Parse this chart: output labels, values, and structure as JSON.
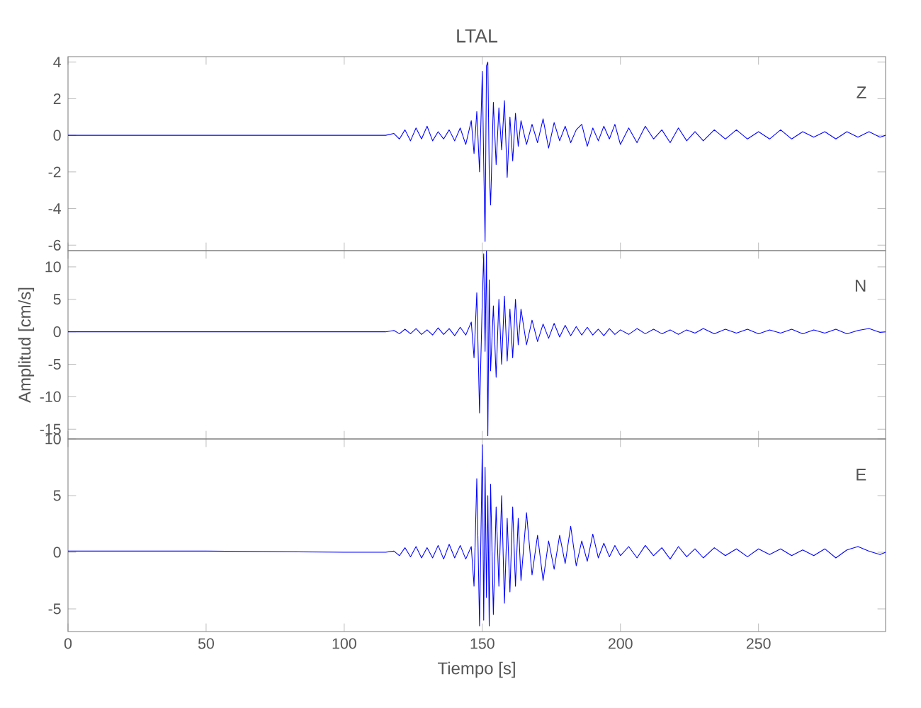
{
  "chart_data": [
    {
      "type": "line",
      "title": "LTAL",
      "annotations": [
        "Z"
      ],
      "color": "#0000ff",
      "tick_labels": "y",
      "xlim": [
        0,
        296
      ],
      "ylim": [
        -6.3,
        4.3
      ],
      "xticks": [
        0,
        50,
        100,
        150,
        200,
        250
      ],
      "yticks": [
        -6,
        -4,
        -2,
        0,
        2,
        4
      ],
      "x": [
        0,
        50,
        100,
        115,
        118,
        120,
        122,
        124,
        126,
        128,
        130,
        132,
        134,
        136,
        138,
        140,
        142,
        144,
        146,
        147,
        148,
        149,
        150,
        150.5,
        151,
        151.5,
        152,
        152.5,
        153,
        154,
        155,
        156,
        157,
        158,
        159,
        160,
        161,
        162,
        163,
        164,
        166,
        168,
        170,
        172,
        174,
        176,
        178,
        180,
        182,
        184,
        186,
        188,
        190,
        192,
        194,
        196,
        198,
        200,
        203,
        206,
        209,
        212,
        215,
        218,
        221,
        224,
        227,
        230,
        234,
        238,
        242,
        246,
        250,
        254,
        258,
        262,
        266,
        270,
        274,
        278,
        282,
        286,
        290,
        294,
        296
      ],
      "values": [
        0,
        0,
        0,
        0,
        0.1,
        -0.2,
        0.3,
        -0.3,
        0.4,
        -0.2,
        0.5,
        -0.3,
        0.2,
        -0.2,
        0.3,
        -0.3,
        0.4,
        -0.5,
        0.8,
        -1,
        1.3,
        -2,
        3.5,
        -1.5,
        -5.8,
        3.8,
        4,
        -2,
        -3.8,
        1.8,
        -1.6,
        1.5,
        -0.8,
        1.9,
        -2.3,
        1,
        -1.4,
        1.2,
        -0.6,
        0.8,
        -0.5,
        0.6,
        -0.4,
        0.9,
        -0.7,
        0.7,
        -0.3,
        0.5,
        -0.4,
        0.3,
        0.6,
        -0.6,
        0.4,
        -0.3,
        0.5,
        -0.2,
        0.6,
        -0.5,
        0.4,
        -0.4,
        0.5,
        -0.2,
        0.3,
        -0.4,
        0.4,
        -0.3,
        0.2,
        -0.3,
        0.3,
        -0.2,
        0.3,
        -0.2,
        0.2,
        -0.2,
        0.3,
        -0.2,
        0.2,
        -0.1,
        0.2,
        -0.2,
        0.2,
        -0.1,
        0.2,
        -0.1,
        0
      ]
    },
    {
      "type": "line",
      "ylabel": "Amplitud [cm/s]",
      "annotations": [
        "N"
      ],
      "color": "#0000ff",
      "tick_labels": "y",
      "xlim": [
        0,
        296
      ],
      "ylim": [
        -16.5,
        12.5
      ],
      "xticks": [
        0,
        50,
        100,
        150,
        200,
        250
      ],
      "yticks": [
        -15,
        -10,
        -5,
        0,
        5,
        10
      ],
      "x": [
        0,
        50,
        100,
        115,
        118,
        120,
        122,
        124,
        126,
        128,
        130,
        132,
        134,
        136,
        138,
        140,
        142,
        144,
        146,
        147,
        148,
        149,
        150,
        150.5,
        151,
        151.5,
        152,
        152.5,
        153,
        154,
        155,
        156,
        157,
        158,
        159,
        160,
        161,
        162,
        163,
        164,
        166,
        168,
        170,
        172,
        174,
        176,
        178,
        180,
        182,
        184,
        186,
        188,
        190,
        192,
        194,
        196,
        198,
        200,
        203,
        206,
        209,
        212,
        215,
        218,
        221,
        224,
        227,
        230,
        234,
        238,
        242,
        246,
        250,
        254,
        258,
        262,
        266,
        270,
        274,
        278,
        282,
        286,
        290,
        294,
        296
      ],
      "values": [
        0,
        0,
        0,
        0,
        0.2,
        -0.3,
        0.4,
        -0.3,
        0.5,
        -0.4,
        0.3,
        -0.5,
        0.6,
        -0.4,
        0.5,
        -0.6,
        0.7,
        -0.5,
        1.5,
        -4,
        6,
        -12.5,
        5,
        12,
        -3,
        12.5,
        -16,
        8,
        -6,
        4,
        -7,
        5,
        -5,
        5.5,
        -4.5,
        3.5,
        -4,
        5,
        -2,
        3.5,
        -2,
        1.8,
        -1.5,
        1.2,
        -1,
        1.3,
        -0.8,
        1,
        -0.6,
        0.8,
        -0.5,
        0.7,
        -0.5,
        0.4,
        -0.6,
        0.5,
        -0.4,
        0.3,
        -0.4,
        0.5,
        -0.3,
        0.4,
        -0.3,
        0.3,
        -0.4,
        0.3,
        -0.2,
        0.5,
        -0.3,
        0.4,
        -0.2,
        0.4,
        -0.3,
        0.3,
        -0.2,
        0.4,
        -0.3,
        0.3,
        -0.2,
        0.4,
        -0.3,
        0.2,
        0.5,
        -0.1,
        0
      ]
    },
    {
      "type": "line",
      "xlabel": "Tiempo [s]",
      "annotations": [
        "E"
      ],
      "color": "#0000ff",
      "xlim": [
        0,
        296
      ],
      "ylim": [
        -7,
        10
      ],
      "xticks": [
        0,
        50,
        100,
        150,
        200,
        250
      ],
      "yticks": [
        -5,
        0,
        5,
        10
      ],
      "x": [
        0,
        50,
        100,
        115,
        118,
        120,
        122,
        124,
        126,
        128,
        130,
        132,
        134,
        136,
        138,
        140,
        142,
        144,
        146,
        147,
        148,
        149,
        150,
        150.5,
        151,
        151.5,
        152,
        152.5,
        153,
        154,
        155,
        156,
        157,
        158,
        159,
        160,
        161,
        162,
        163,
        164,
        166,
        168,
        170,
        172,
        174,
        176,
        178,
        180,
        182,
        184,
        186,
        188,
        190,
        192,
        194,
        196,
        198,
        200,
        203,
        206,
        209,
        212,
        215,
        218,
        221,
        224,
        227,
        230,
        234,
        238,
        242,
        246,
        250,
        254,
        258,
        262,
        266,
        270,
        274,
        278,
        282,
        286,
        290,
        294,
        296
      ],
      "values": [
        0.1,
        0.1,
        0,
        0,
        0.1,
        -0.3,
        0.4,
        -0.4,
        0.5,
        -0.5,
        0.4,
        -0.5,
        0.6,
        -0.6,
        0.7,
        -0.5,
        0.6,
        -0.6,
        0.5,
        -3,
        6.5,
        -6.5,
        9.5,
        -6,
        7.5,
        -4,
        5,
        -6.5,
        6,
        -5.5,
        4,
        -3,
        5,
        -4.5,
        3,
        -3.5,
        4,
        -3,
        3,
        -2.5,
        3.5,
        -2,
        1.5,
        -2.5,
        1,
        -1.5,
        1.5,
        -1,
        2.3,
        -1.2,
        1,
        -0.8,
        1.6,
        -0.5,
        0.8,
        -0.4,
        0.6,
        -0.3,
        0.5,
        -0.5,
        0.6,
        -0.3,
        0.4,
        -0.6,
        0.5,
        -0.4,
        0.3,
        -0.5,
        0.4,
        -0.3,
        0.3,
        -0.4,
        0.3,
        -0.2,
        0.3,
        -0.3,
        0.2,
        -0.3,
        0.3,
        -0.5,
        0.2,
        0.5,
        0.1,
        -0.2,
        0
      ]
    }
  ]
}
